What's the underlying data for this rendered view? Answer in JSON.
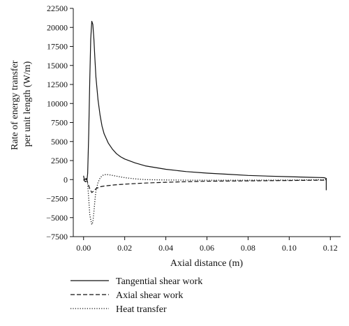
{
  "chart_data": {
    "type": "line",
    "xlabel": "Axial distance (m)",
    "ylabel": [
      "Rate of energy transfer",
      "per unit length (W/m)"
    ],
    "xlim": [
      -0.005,
      0.125
    ],
    "ylim": [
      -7500,
      22500
    ],
    "xticks": [
      0.0,
      0.02,
      0.04,
      0.06,
      0.08,
      0.1,
      0.12
    ],
    "xtick_labels": [
      "0.00",
      "0.02",
      "0.04",
      "0.06",
      "0.08",
      "0.10",
      "0.12"
    ],
    "yticks": [
      -7500,
      -5000,
      -2500,
      0,
      2500,
      5000,
      7500,
      10000,
      12500,
      15000,
      17500,
      20000,
      22500
    ],
    "ytick_labels": [
      "−7500",
      "−5000",
      "−2500",
      "0",
      "2500",
      "5000",
      "7500",
      "10000",
      "12500",
      "15000",
      "17500",
      "20000",
      "22500"
    ],
    "grid": false,
    "legend_position": "bottom-left",
    "series": [
      {
        "name": "Tangential shear work",
        "line_style": "solid",
        "color": "#111111",
        "x": [
          0.0,
          0.0003,
          0.0007,
          0.0012,
          0.0017,
          0.002,
          0.0025,
          0.003,
          0.0035,
          0.004,
          0.0045,
          0.005,
          0.0055,
          0.006,
          0.007,
          0.008,
          0.009,
          0.01,
          0.012,
          0.014,
          0.016,
          0.018,
          0.02,
          0.025,
          0.03,
          0.04,
          0.05,
          0.06,
          0.07,
          0.08,
          0.09,
          0.1,
          0.11,
          0.115,
          0.117,
          0.118,
          0.118
        ],
        "y": [
          500,
          100,
          0,
          150,
          0,
          800,
          6000,
          13000,
          18500,
          20800,
          20400,
          18500,
          16000,
          13500,
          10500,
          8500,
          7000,
          6000,
          4800,
          4000,
          3400,
          3000,
          2700,
          2200,
          1800,
          1350,
          1050,
          850,
          700,
          550,
          450,
          380,
          300,
          270,
          250,
          150,
          -1400
        ]
      },
      {
        "name": "Axial shear work",
        "line_style": "dashed",
        "color": "#111111",
        "x": [
          0.0,
          0.0005,
          0.001,
          0.0015,
          0.002,
          0.003,
          0.004,
          0.005,
          0.006,
          0.008,
          0.01,
          0.015,
          0.02,
          0.03,
          0.04,
          0.05,
          0.06,
          0.08,
          0.1,
          0.11,
          0.118,
          0.118
        ],
        "y": [
          0,
          -200,
          -300,
          100,
          -400,
          -1200,
          -1700,
          -1500,
          -1200,
          -950,
          -850,
          -700,
          -600,
          -450,
          -350,
          -280,
          -220,
          -170,
          -120,
          -100,
          -80,
          200
        ]
      },
      {
        "name": "Heat transfer",
        "line_style": "dotted",
        "color": "#111111",
        "x": [
          0.0,
          0.0015,
          0.002,
          0.0025,
          0.003,
          0.0035,
          0.004,
          0.0045,
          0.005,
          0.0055,
          0.006,
          0.007,
          0.008,
          0.009,
          0.01,
          0.012,
          0.015,
          0.02,
          0.025,
          0.03,
          0.04,
          0.05,
          0.06,
          0.08,
          0.1,
          0.118
        ],
        "y": [
          0,
          0,
          -600,
          -2500,
          -4600,
          -5300,
          -5900,
          -5600,
          -4300,
          -2800,
          -1500,
          -400,
          200,
          500,
          650,
          650,
          500,
          250,
          100,
          0,
          -50,
          -80,
          -80,
          -80,
          -60,
          0
        ]
      }
    ]
  }
}
